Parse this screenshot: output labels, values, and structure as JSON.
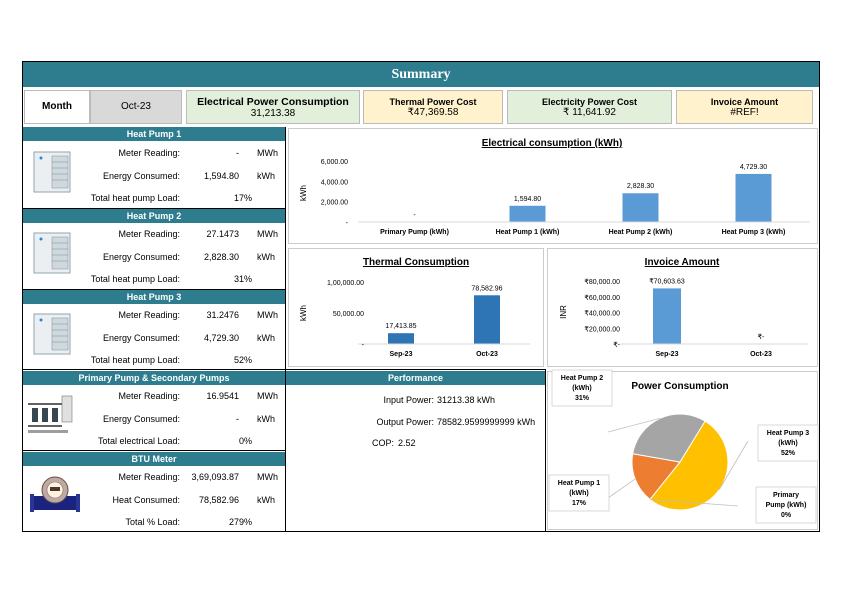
{
  "title": "Summary",
  "month": {
    "label": "Month",
    "value": "Oct-23"
  },
  "kpis": {
    "electrical": {
      "label": "Electrical Power Consumption",
      "value": "31,213.38"
    },
    "thermal_cost": {
      "label": "Thermal Power Cost",
      "value": "₹47,369.58"
    },
    "electricity_cost": {
      "label": "Electricity Power Cost",
      "value": "₹ 11,641.92"
    },
    "invoice": {
      "label": "Invoice Amount",
      "value": "#REF!"
    }
  },
  "heat_pump_1": {
    "title": "Heat Pump 1",
    "meter_label": "Meter Reading:",
    "meter_value": "-",
    "meter_unit": "MWh",
    "energy_label": "Energy Consumed:",
    "energy_value": "1,594.80",
    "energy_unit": "kWh",
    "load_label": "Total heat pump Load:",
    "load_value": "17%"
  },
  "heat_pump_2": {
    "title": "Heat Pump 2",
    "meter_label": "Meter Reading:",
    "meter_value": "27.1473",
    "meter_unit": "MWh",
    "energy_label": "Energy Consumed:",
    "energy_value": "2,828.30",
    "energy_unit": "kWh",
    "load_label": "Total heat pump Load:",
    "load_value": "31%"
  },
  "heat_pump_3": {
    "title": "Heat Pump 3",
    "meter_label": "Meter Reading:",
    "meter_value": "31.2476",
    "meter_unit": "MWh",
    "energy_label": "Energy Consumed:",
    "energy_value": "4,729.30",
    "energy_unit": "kWh",
    "load_label": "Total heat pump Load:",
    "load_value": "52%"
  },
  "primary_pumps": {
    "title": "Primary Pump & Secondary Pumps",
    "meter_label": "Meter Reading:",
    "meter_value": "16.9541",
    "meter_unit": "MWh",
    "energy_label": "Energy Consumed:",
    "energy_value": "-",
    "energy_unit": "kWh",
    "load_label": "Total electrical Load:",
    "load_value": "0%"
  },
  "btu_meter": {
    "title": "BTU Meter",
    "meter_label": "Meter Reading:",
    "meter_value": "3,69,093.87",
    "meter_unit": "MWh",
    "heat_label": "Heat Consumed:",
    "heat_value": "78,582.96",
    "heat_unit": "kWh",
    "load_label": "Total % Load:",
    "load_value": "279%"
  },
  "performance": {
    "title": "Performance",
    "input_label": "Input Power:",
    "input_value": "31213.38 kWh",
    "output_label": "Output Power:",
    "output_value": "78582.9599999999 kWh",
    "cop_label": "COP:",
    "cop_value": "2.52"
  },
  "colors": {
    "teal": "#2e7d8f",
    "bar": "#5b9bd5",
    "bar_dark": "#2e75b6",
    "hp1": "#ed7d31",
    "hp2": "#a5a5a5",
    "hp3": "#ffc000"
  },
  "chart_data": [
    {
      "id": "electrical",
      "type": "bar",
      "title": "Electrical consumption (kWh)",
      "ylabel": "kWh",
      "categories": [
        "Primary Pump (kWh)",
        "Heat Pump 1  (kWh)",
        "Heat Pump 2  (kWh)",
        "Heat Pump 3  (kWh)"
      ],
      "values": [
        0,
        1594.8,
        2828.3,
        4729.3
      ],
      "value_labels": [
        "-",
        "1,594.80",
        "2,828.30",
        "4,729.30"
      ],
      "yticks": [
        "6,000.00",
        "4,000.00",
        "2,000.00",
        "-"
      ],
      "ylim": [
        0,
        6000
      ]
    },
    {
      "id": "thermal",
      "type": "bar",
      "title": "Thermal Consumption",
      "ylabel": "kWh",
      "categories": [
        "Sep-23",
        "Oct-23"
      ],
      "values": [
        17413.85,
        78582.96
      ],
      "value_labels": [
        "17,413.85",
        "78,582.96"
      ],
      "yticks": [
        "1,00,000.00",
        "50,000.00",
        "-"
      ],
      "ylim": [
        0,
        100000
      ]
    },
    {
      "id": "invoice",
      "type": "bar",
      "title": "Invoice Amount",
      "ylabel": "INR",
      "categories": [
        "Sep-23",
        "Oct-23"
      ],
      "values": [
        70603.63,
        0
      ],
      "value_labels": [
        "₹70,603.63",
        "₹-"
      ],
      "yticks": [
        "₹80,000.00",
        "₹60,000.00",
        "₹40,000.00",
        "₹20,000.00",
        "₹-"
      ],
      "ylim": [
        0,
        80000
      ]
    },
    {
      "id": "power",
      "type": "pie",
      "title": "Power Consumption",
      "slices": [
        {
          "name": "Heat Pump 3 (kWh)",
          "label_lines": [
            "Heat Pump 3",
            "(kWh)",
            "52%"
          ],
          "value": 52
        },
        {
          "name": "Primary Pump (kWh)",
          "label_lines": [
            "Primary",
            "Pump (kWh)",
            "0%"
          ],
          "value": 0
        },
        {
          "name": "Heat Pump 1 (kWh)",
          "label_lines": [
            "Heat Pump 1",
            "(kWh)",
            "17%"
          ],
          "value": 17
        },
        {
          "name": "Heat Pump 2 (kWh)",
          "label_lines": [
            "Heat Pump 2",
            "(kWh)",
            "31%"
          ],
          "value": 31
        }
      ]
    }
  ]
}
